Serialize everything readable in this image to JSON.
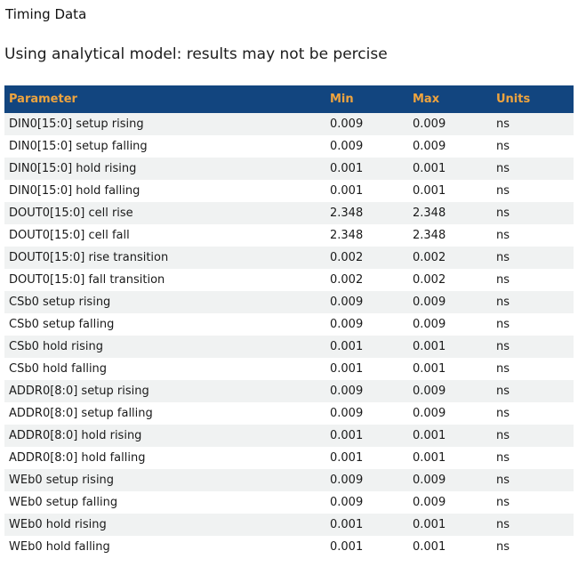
{
  "page": {
    "title": "Timing Data",
    "subtitle": "Using analytical model: results may not be percise"
  },
  "colors": {
    "header_bg": "#12457F",
    "header_text": "#EFA43E",
    "row_stripe": "#F0F2F2",
    "body_text": "#1a1a1a"
  },
  "table": {
    "columns": [
      "Parameter",
      "Min",
      "Max",
      "Units"
    ],
    "rows": [
      {
        "parameter": "DIN0[15:0] setup rising",
        "min": "0.009",
        "max": "0.009",
        "units": "ns"
      },
      {
        "parameter": "DIN0[15:0] setup falling",
        "min": "0.009",
        "max": "0.009",
        "units": "ns"
      },
      {
        "parameter": "DIN0[15:0] hold rising",
        "min": "0.001",
        "max": "0.001",
        "units": "ns"
      },
      {
        "parameter": "DIN0[15:0] hold falling",
        "min": "0.001",
        "max": "0.001",
        "units": "ns"
      },
      {
        "parameter": "DOUT0[15:0] cell rise",
        "min": "2.348",
        "max": "2.348",
        "units": "ns"
      },
      {
        "parameter": "DOUT0[15:0] cell fall",
        "min": "2.348",
        "max": "2.348",
        "units": "ns"
      },
      {
        "parameter": "DOUT0[15:0] rise transition",
        "min": "0.002",
        "max": "0.002",
        "units": "ns"
      },
      {
        "parameter": "DOUT0[15:0] fall transition",
        "min": "0.002",
        "max": "0.002",
        "units": "ns"
      },
      {
        "parameter": "CSb0 setup rising",
        "min": "0.009",
        "max": "0.009",
        "units": "ns"
      },
      {
        "parameter": "CSb0 setup falling",
        "min": "0.009",
        "max": "0.009",
        "units": "ns"
      },
      {
        "parameter": "CSb0 hold rising",
        "min": "0.001",
        "max": "0.001",
        "units": "ns"
      },
      {
        "parameter": "CSb0 hold falling",
        "min": "0.001",
        "max": "0.001",
        "units": "ns"
      },
      {
        "parameter": "ADDR0[8:0] setup rising",
        "min": "0.009",
        "max": "0.009",
        "units": "ns"
      },
      {
        "parameter": "ADDR0[8:0] setup falling",
        "min": "0.009",
        "max": "0.009",
        "units": "ns"
      },
      {
        "parameter": "ADDR0[8:0] hold rising",
        "min": "0.001",
        "max": "0.001",
        "units": "ns"
      },
      {
        "parameter": "ADDR0[8:0] hold falling",
        "min": "0.001",
        "max": "0.001",
        "units": "ns"
      },
      {
        "parameter": "WEb0 setup rising",
        "min": "0.009",
        "max": "0.009",
        "units": "ns"
      },
      {
        "parameter": "WEb0 setup falling",
        "min": "0.009",
        "max": "0.009",
        "units": "ns"
      },
      {
        "parameter": "WEb0 hold rising",
        "min": "0.001",
        "max": "0.001",
        "units": "ns"
      },
      {
        "parameter": "WEb0 hold falling",
        "min": "0.001",
        "max": "0.001",
        "units": "ns"
      }
    ]
  }
}
